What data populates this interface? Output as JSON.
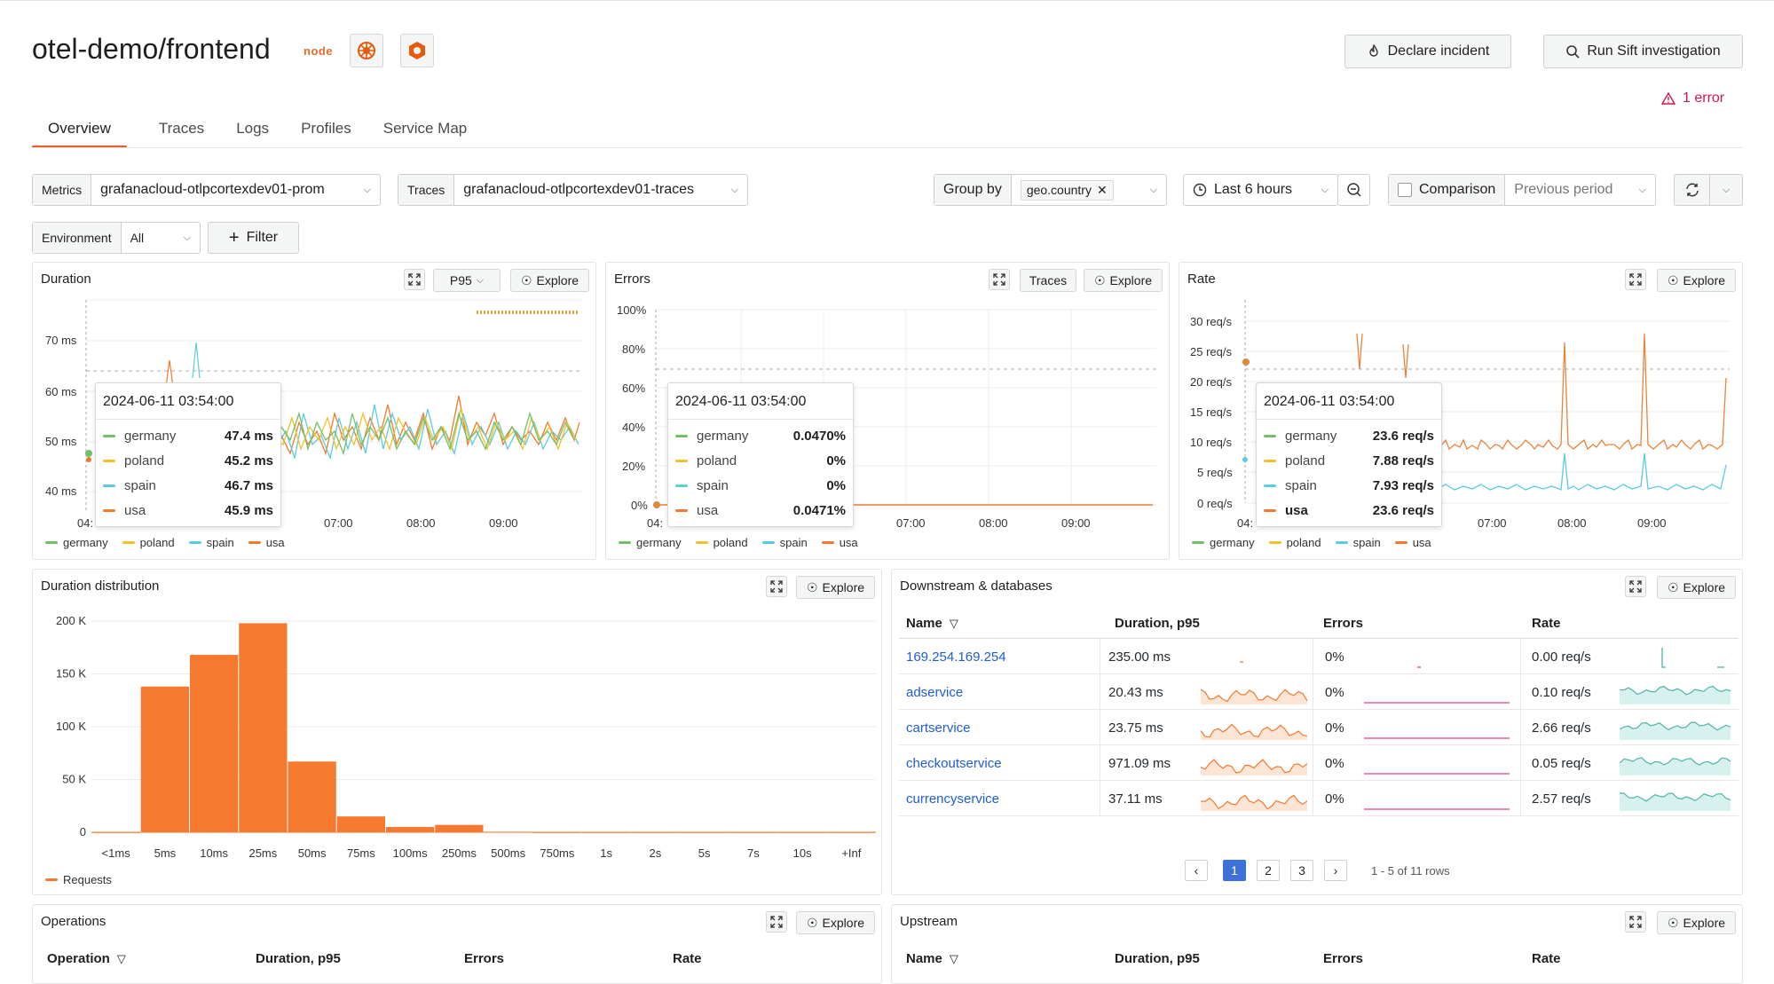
{
  "header": {
    "title": "otel-demo/frontend",
    "node_logo": "node",
    "declare_incident": "Declare incident",
    "run_sift": "Run Sift investigation",
    "error_count": "1 error"
  },
  "tabs": [
    "Overview",
    "Traces",
    "Logs",
    "Profiles",
    "Service Map"
  ],
  "controls": {
    "metrics_label": "Metrics",
    "metrics_value": "grafanacloud-otlpcortexdev01-prom",
    "traces_label": "Traces",
    "traces_value": "grafanacloud-otlpcortexdev01-traces",
    "groupby_label": "Group by",
    "groupby_value": "geo.country",
    "time_range": "Last 6 hours",
    "comparison": "Comparison",
    "previous_period": "Previous period",
    "environment_label": "Environment",
    "environment_value": "All",
    "filter": "Filter"
  },
  "colors": {
    "germany": "#73bf69",
    "poland": "#f2c029",
    "spain": "#5ccbe0",
    "usa": "#f07a2d",
    "accent": "#f05a28"
  },
  "duration_panel": {
    "title": "Duration",
    "quantile": "P95",
    "explore": "Explore",
    "yticks": [
      "70 ms",
      "60 ms",
      "50 ms",
      "40 ms"
    ],
    "xticks": [
      "04:",
      "07:00",
      "08:00",
      "09:00"
    ],
    "tooltip": {
      "time": "2024-06-11 03:54:00",
      "rows": [
        {
          "name": "germany",
          "value": "47.4 ms"
        },
        {
          "name": "poland",
          "value": "45.2 ms"
        },
        {
          "name": "spain",
          "value": "46.7 ms"
        },
        {
          "name": "usa",
          "value": "45.9 ms"
        }
      ]
    }
  },
  "errors_panel": {
    "title": "Errors",
    "traces": "Traces",
    "explore": "Explore",
    "yticks": [
      "100%",
      "80%",
      "60%",
      "40%",
      "20%",
      "0%"
    ],
    "xticks": [
      "04:",
      "07:00",
      "08:00",
      "09:00"
    ],
    "tooltip": {
      "time": "2024-06-11 03:54:00",
      "rows": [
        {
          "name": "germany",
          "value": "0.0470%"
        },
        {
          "name": "poland",
          "value": "0%"
        },
        {
          "name": "spain",
          "value": "0%"
        },
        {
          "name": "usa",
          "value": "0.0471%"
        }
      ]
    }
  },
  "rate_panel": {
    "title": "Rate",
    "explore": "Explore",
    "yticks": [
      "30 req/s",
      "25 req/s",
      "20 req/s",
      "15 req/s",
      "10 req/s",
      "5 req/s",
      "0 req/s"
    ],
    "xticks": [
      "04:",
      "07:00",
      "08:00",
      "09:00"
    ],
    "tooltip": {
      "time": "2024-06-11 03:54:00",
      "rows": [
        {
          "name": "germany",
          "value": "23.6 req/s"
        },
        {
          "name": "poland",
          "value": "7.88 req/s"
        },
        {
          "name": "spain",
          "value": "7.93 req/s"
        },
        {
          "name": "usa",
          "value": "23.6 req/s"
        }
      ]
    }
  },
  "legend": [
    "germany",
    "poland",
    "spain",
    "usa"
  ],
  "distribution_panel": {
    "title": "Duration distribution",
    "explore": "Explore",
    "legend": "Requests"
  },
  "chart_data": {
    "type": "bar",
    "categories": [
      "<1ms",
      "5ms",
      "10ms",
      "25ms",
      "50ms",
      "75ms",
      "100ms",
      "250ms",
      "500ms",
      "750ms",
      "1s",
      "2s",
      "5s",
      "7s",
      "10s",
      "+Inf"
    ],
    "series": [
      {
        "name": "Requests",
        "values": [
          0,
          138000,
          168000,
          198000,
          67000,
          15000,
          5000,
          7000,
          500,
          0,
          0,
          0,
          0,
          0,
          0,
          0
        ]
      }
    ],
    "yticks": [
      "200 K",
      "150 K",
      "100 K",
      "50 K",
      "0"
    ],
    "ylim": [
      0,
      200000
    ],
    "color": "#f57a30"
  },
  "downstream_panel": {
    "title": "Downstream & databases",
    "explore": "Explore",
    "columns": [
      "Name",
      "Duration, p95",
      "Errors",
      "Rate"
    ],
    "rows": [
      {
        "name": "169.254.169.254",
        "duration": "235.00 ms",
        "errors": "0%",
        "rate": "0.00 req/s"
      },
      {
        "name": "adservice",
        "duration": "20.43 ms",
        "errors": "0%",
        "rate": "0.10 req/s"
      },
      {
        "name": "cartservice",
        "duration": "23.75 ms",
        "errors": "0%",
        "rate": "2.66 req/s"
      },
      {
        "name": "checkoutservice",
        "duration": "971.09 ms",
        "errors": "0%",
        "rate": "0.05 req/s"
      },
      {
        "name": "currencyservice",
        "duration": "37.11 ms",
        "errors": "0%",
        "rate": "2.57 req/s"
      }
    ],
    "pages": [
      "1",
      "2",
      "3"
    ],
    "page_info": "1 - 5 of 11 rows"
  },
  "operations_panel": {
    "title": "Operations",
    "explore": "Explore",
    "columns": [
      "Operation",
      "Duration, p95",
      "Errors",
      "Rate"
    ]
  },
  "upstream_panel": {
    "title": "Upstream",
    "explore": "Explore",
    "columns": [
      "Name",
      "Duration, p95",
      "Errors",
      "Rate"
    ]
  }
}
